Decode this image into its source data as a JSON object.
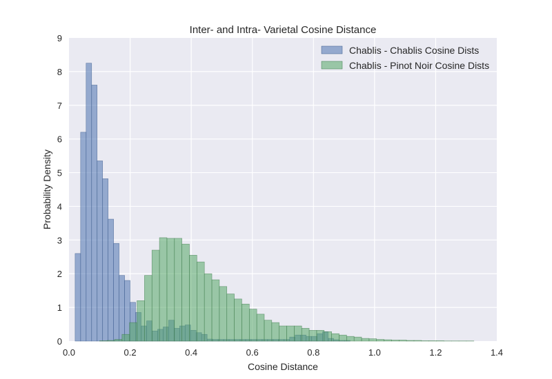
{
  "chart_data": {
    "type": "bar",
    "title": "Inter- and Intra- Varietal Cosine Distance",
    "xlabel": "Cosine Distance",
    "ylabel": "Probability Density",
    "xlim": [
      0.0,
      1.4
    ],
    "ylim": [
      0,
      9
    ],
    "xticks": [
      "0.0",
      "0.2",
      "0.4",
      "0.6",
      "0.8",
      "1.0",
      "1.2",
      "1.4"
    ],
    "yticks": [
      "0",
      "1",
      "2",
      "3",
      "4",
      "5",
      "6",
      "7",
      "8",
      "9"
    ],
    "grid": true,
    "legend_position": "top-right",
    "series": [
      {
        "name": "Chablis - Chablis Cosine Dists",
        "color": "#4c72b0",
        "bin_edges": [
          0.02,
          0.038,
          0.056,
          0.074,
          0.092,
          0.11,
          0.128,
          0.146,
          0.164,
          0.182,
          0.2,
          0.218,
          0.236,
          0.254,
          0.272,
          0.29,
          0.308,
          0.326,
          0.344,
          0.362,
          0.38,
          0.398,
          0.416,
          0.434,
          0.452,
          0.47,
          0.488,
          0.506,
          0.524,
          0.542,
          0.56,
          0.578,
          0.596,
          0.614,
          0.632,
          0.65,
          0.668,
          0.686,
          0.704,
          0.722,
          0.74,
          0.758,
          0.776,
          0.794,
          0.812,
          0.83,
          0.848,
          0.866,
          0.884,
          0.902,
          0.92
        ],
        "values": [
          2.6,
          6.2,
          8.25,
          7.6,
          5.35,
          4.82,
          3.62,
          2.9,
          1.95,
          1.8,
          1.15,
          0.85,
          0.45,
          0.6,
          0.3,
          0.35,
          0.42,
          0.62,
          0.38,
          0.45,
          0.48,
          0.32,
          0.25,
          0.2,
          0.06,
          0.05,
          0.05,
          0.05,
          0.05,
          0.05,
          0.05,
          0.05,
          0.05,
          0.05,
          0.05,
          0.05,
          0.05,
          0.05,
          0.05,
          0.12,
          0.18,
          0.18,
          0.14,
          0.14,
          0.22,
          0.28,
          0.08,
          0.04,
          0.02,
          0.02
        ]
      },
      {
        "name": "Chablis - Pinot Noir Cosine Dists",
        "color": "#55a868",
        "bin_edges": [
          0.1,
          0.1245,
          0.149,
          0.1735,
          0.198,
          0.2225,
          0.247,
          0.2715,
          0.296,
          0.3205,
          0.345,
          0.3695,
          0.394,
          0.4185,
          0.443,
          0.4675,
          0.492,
          0.5165,
          0.541,
          0.5655,
          0.59,
          0.6145,
          0.639,
          0.6635,
          0.688,
          0.7125,
          0.737,
          0.7615,
          0.786,
          0.8105,
          0.835,
          0.8595,
          0.884,
          0.9085,
          0.933,
          0.9575,
          0.982,
          1.0065,
          1.031,
          1.0555,
          1.08,
          1.1045,
          1.129,
          1.1535,
          1.178,
          1.2025,
          1.227,
          1.2515,
          1.276,
          1.3005,
          1.325
        ],
        "values": [
          0.01,
          0.02,
          0.05,
          0.2,
          0.55,
          1.2,
          1.95,
          2.7,
          3.07,
          3.05,
          3.05,
          2.88,
          2.55,
          2.35,
          2.0,
          1.82,
          1.62,
          1.4,
          1.25,
          1.1,
          0.95,
          0.8,
          0.62,
          0.55,
          0.45,
          0.45,
          0.45,
          0.38,
          0.32,
          0.32,
          0.28,
          0.22,
          0.18,
          0.14,
          0.12,
          0.08,
          0.07,
          0.05,
          0.04,
          0.03,
          0.03,
          0.02,
          0.02,
          0.01,
          0.01,
          0.01,
          0.005,
          0.005,
          0.005,
          0.005
        ]
      }
    ]
  }
}
